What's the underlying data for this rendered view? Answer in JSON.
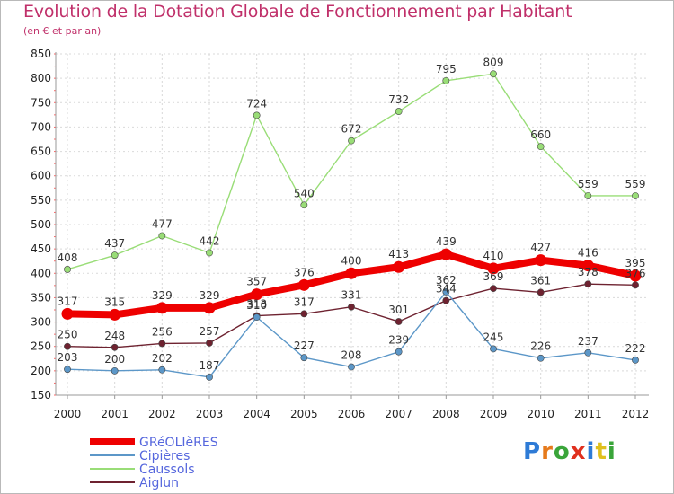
{
  "header": {
    "title": "Evolution de la Dotation Globale de Fonctionnement par Habitant",
    "subtitle": "(en € et par an)"
  },
  "logo": {
    "text": "Proxiti",
    "letters": [
      "P",
      "r",
      "o",
      "x",
      "i",
      "t",
      "i"
    ],
    "colors": [
      "#2e7bd6",
      "#e67a1c",
      "#3aa53a",
      "#e0301e",
      "#2e7bd6",
      "#e0c01e",
      "#3aa53a"
    ]
  },
  "chart_data": {
    "type": "line",
    "title": "Evolution de la Dotation Globale de Fonctionnement par Habitant",
    "subtitle": "(en € et par an)",
    "x": [
      "2000",
      "2001",
      "2002",
      "2003",
      "2004",
      "2005",
      "2006",
      "2007",
      "2008",
      "2009",
      "2010",
      "2011",
      "2012"
    ],
    "ylim": [
      150,
      850
    ],
    "yticks": [
      150,
      200,
      250,
      300,
      350,
      400,
      450,
      500,
      550,
      600,
      650,
      700,
      750,
      800,
      850
    ],
    "grid": true,
    "legend_position": "bottom-left",
    "series": [
      {
        "name": "GRéOLIèRES",
        "color": "#ee0000",
        "width": "thick",
        "values": [
          317,
          315,
          329,
          329,
          357,
          376,
          400,
          413,
          439,
          410,
          427,
          416,
          395
        ]
      },
      {
        "name": "Cipières",
        "color": "#5c97c8",
        "width": "thin",
        "values": [
          203,
          200,
          202,
          187,
          310,
          227,
          208,
          239,
          362,
          245,
          226,
          237,
          222
        ]
      },
      {
        "name": "Caussols",
        "color": "#99dd77",
        "width": "thin",
        "values": [
          408,
          437,
          477,
          442,
          724,
          540,
          672,
          732,
          795,
          809,
          660,
          559,
          559
        ]
      },
      {
        "name": "Aiglun",
        "color": "#6e2230",
        "width": "thin",
        "values": [
          250,
          248,
          256,
          257,
          313,
          317,
          331,
          301,
          344,
          369,
          361,
          378,
          376
        ]
      }
    ]
  }
}
